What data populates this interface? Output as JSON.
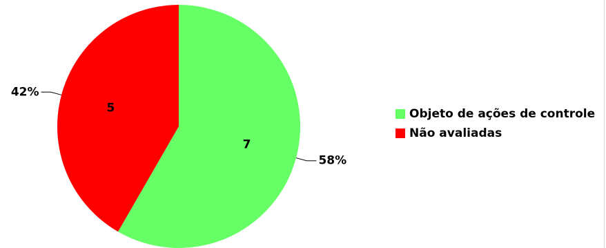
{
  "chart_data": {
    "type": "pie",
    "title": "",
    "slices": [
      {
        "label": "Objeto de ações de controle",
        "value": 7,
        "percent_label": "58%",
        "color": "#66FF66"
      },
      {
        "label": "Não avaliadas",
        "value": 5,
        "percent_label": "42%",
        "color": "#FF0000"
      }
    ],
    "legend_position": "right"
  }
}
